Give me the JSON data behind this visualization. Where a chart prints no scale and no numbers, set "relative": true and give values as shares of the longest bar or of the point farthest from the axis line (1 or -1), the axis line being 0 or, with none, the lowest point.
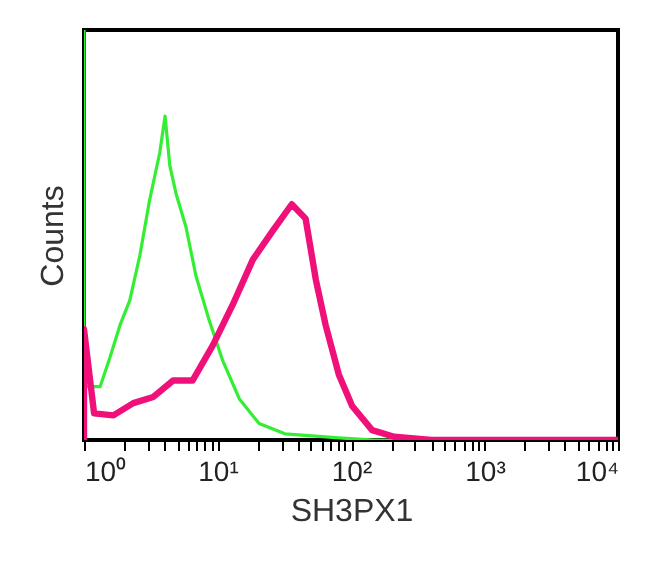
{
  "chart_data": {
    "type": "line",
    "xlabel": "SH3PX1",
    "ylabel": "Counts",
    "relative": true,
    "log": "x",
    "marker": "none",
    "line_style": "solid",
    "xlim": [
      1,
      10000
    ],
    "xticks": [
      {
        "value": 1,
        "label": "10⁰"
      },
      {
        "value": 2,
        "label": null
      },
      {
        "value": 3,
        "label": null
      },
      {
        "value": 4,
        "label": null
      },
      {
        "value": 5,
        "label": null
      },
      {
        "value": 6,
        "label": null
      },
      {
        "value": 7,
        "label": null
      },
      {
        "value": 8,
        "label": null
      },
      {
        "value": 9,
        "label": null
      },
      {
        "value": 10,
        "label": "10¹"
      },
      {
        "value": 20,
        "label": null
      },
      {
        "value": 30,
        "label": null
      },
      {
        "value": 40,
        "label": null
      },
      {
        "value": 50,
        "label": null
      },
      {
        "value": 60,
        "label": null
      },
      {
        "value": 70,
        "label": null
      },
      {
        "value": 80,
        "label": null
      },
      {
        "value": 90,
        "label": null
      },
      {
        "value": 100,
        "label": "10²"
      },
      {
        "value": 200,
        "label": null
      },
      {
        "value": 300,
        "label": null
      },
      {
        "value": 400,
        "label": null
      },
      {
        "value": 500,
        "label": null
      },
      {
        "value": 600,
        "label": null
      },
      {
        "value": 700,
        "label": null
      },
      {
        "value": 800,
        "label": null
      },
      {
        "value": 900,
        "label": null
      },
      {
        "value": 1000,
        "label": "10³"
      },
      {
        "value": 2000,
        "label": null
      },
      {
        "value": 3000,
        "label": null
      },
      {
        "value": 4000,
        "label": null
      },
      {
        "value": 5000,
        "label": null
      },
      {
        "value": 6000,
        "label": null
      },
      {
        "value": 7000,
        "label": null
      },
      {
        "value": 8000,
        "label": null
      },
      {
        "value": 9000,
        "label": null
      },
      {
        "value": 10000,
        "label": "10⁴"
      }
    ],
    "series": [
      {
        "color": "#33ee33",
        "x": [
          1,
          1,
          1.32,
          1.56,
          1.86,
          2.2,
          2.62,
          3.1,
          3.69,
          4.05,
          4.39,
          4.9,
          5.8,
          6.9,
          8.7,
          10.9,
          14.6,
          20.5,
          32,
          81,
          150,
          320
        ],
        "values": [
          1.0,
          0.13,
          0.13,
          0.2,
          0.28,
          0.34,
          0.45,
          0.585,
          0.7,
          0.79,
          0.67,
          0.6,
          0.52,
          0.4,
          0.29,
          0.195,
          0.1,
          0.04,
          0.015,
          0.005,
          0,
          0
        ]
      },
      {
        "color": "#f0107a",
        "x": [
          1,
          1,
          1.19,
          1.66,
          2.34,
          3.3,
          4.65,
          6.5,
          9.2,
          13,
          18.4,
          25.9,
          36,
          45.7,
          54.6,
          64.6,
          81,
          102,
          144,
          210,
          400,
          10000
        ],
        "values": [
          0,
          0.27,
          0.065,
          0.06,
          0.09,
          0.105,
          0.145,
          0.145,
          0.23,
          0.33,
          0.44,
          0.51,
          0.575,
          0.54,
          0.39,
          0.28,
          0.16,
          0.083,
          0.024,
          0.008,
          0,
          0
        ]
      }
    ]
  }
}
